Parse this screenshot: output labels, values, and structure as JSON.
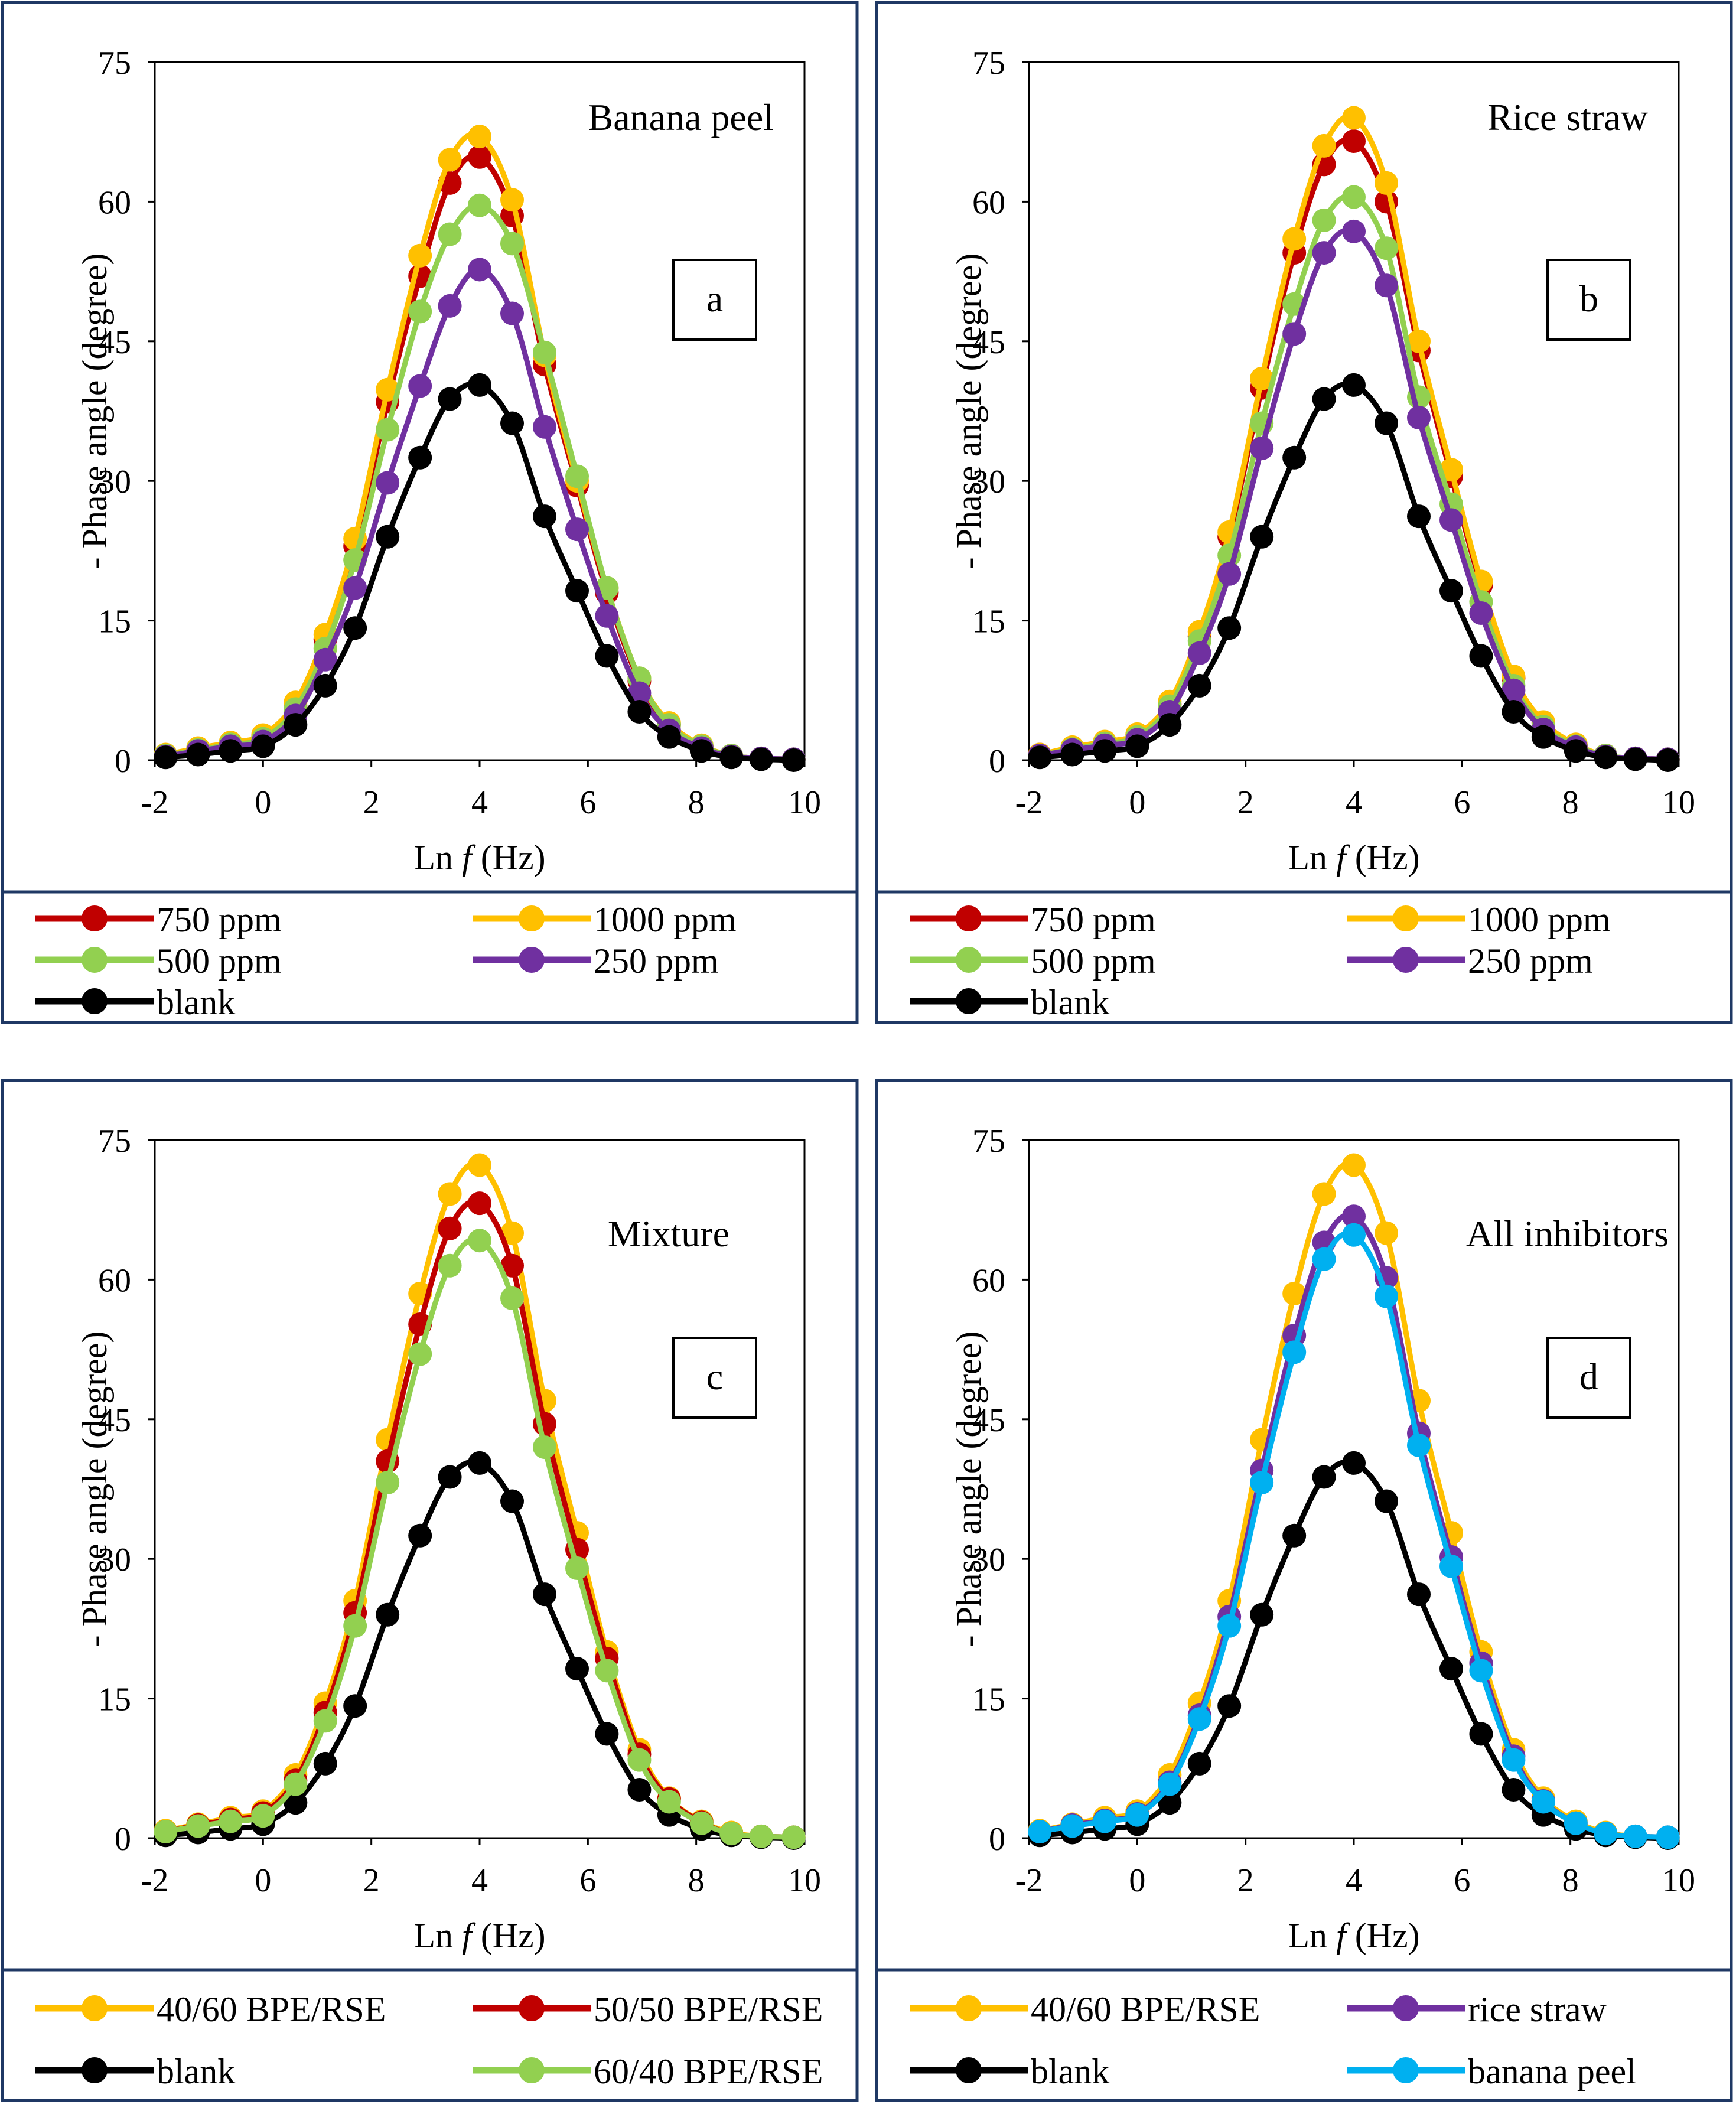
{
  "colors": {
    "750": "#C00000",
    "1000": "#FFC000",
    "500": "#92D050",
    "250": "#7030A0",
    "blank": "#000000",
    "bpe": "#00B0F0",
    "frame": "#1F3864"
  },
  "x_axis": {
    "label_prefix": "Ln ",
    "label_var": "f",
    "label_suffix": " (Hz)",
    "ticks": [
      "-2",
      "0",
      "2",
      "4",
      "6",
      "8",
      "10"
    ],
    "range": [
      -2,
      10
    ]
  },
  "y_axis": {
    "label": "- Phase angle (degree)",
    "ticks": [
      "0",
      "15",
      "30",
      "45",
      "60",
      "75"
    ],
    "range": [
      0,
      75
    ]
  },
  "chart_data": [
    {
      "type": "line",
      "title": "Banana peel",
      "panel_label": "a",
      "x": [
        -1.8,
        -1.2,
        -0.6,
        0.0,
        0.6,
        1.15,
        1.7,
        2.3,
        2.9,
        3.45,
        4.0,
        4.6,
        5.2,
        5.8,
        6.35,
        6.95,
        7.5,
        8.1,
        8.65,
        9.2,
        9.8
      ],
      "series": [
        {
          "name": "750 ppm",
          "color_key": "750",
          "values": [
            0.5,
            1.2,
            1.8,
            2.5,
            5.8,
            13.0,
            23.0,
            38.5,
            52.0,
            62.0,
            64.8,
            58.5,
            42.5,
            29.5,
            18.0,
            8.5,
            3.8,
            1.5,
            0.5,
            0.2,
            0.1
          ]
        },
        {
          "name": "1000 ppm",
          "color_key": "1000",
          "values": [
            0.6,
            1.3,
            1.9,
            2.7,
            6.2,
            13.5,
            23.8,
            39.8,
            54.2,
            64.5,
            67.0,
            60.2,
            43.5,
            30.0,
            18.5,
            8.8,
            4.0,
            1.6,
            0.5,
            0.2,
            0.1
          ]
        },
        {
          "name": "500 ppm",
          "color_key": "500",
          "values": [
            0.5,
            1.1,
            1.7,
            2.3,
            5.5,
            12.0,
            21.5,
            35.5,
            48.2,
            56.5,
            59.6,
            55.5,
            43.8,
            30.5,
            18.5,
            8.8,
            3.8,
            1.5,
            0.5,
            0.2,
            0.1
          ]
        },
        {
          "name": "250 ppm",
          "color_key": "250",
          "values": [
            0.4,
            1.0,
            1.5,
            2.0,
            4.8,
            10.8,
            18.5,
            29.8,
            40.2,
            48.8,
            52.7,
            48.0,
            35.8,
            24.8,
            15.5,
            7.2,
            3.2,
            1.3,
            0.4,
            0.2,
            0.1
          ]
        },
        {
          "name": "blank",
          "color_key": "blank",
          "values": [
            0.3,
            0.6,
            1.0,
            1.5,
            3.8,
            8.0,
            14.2,
            24.0,
            32.5,
            38.8,
            40.3,
            36.2,
            26.2,
            18.2,
            11.2,
            5.2,
            2.5,
            1.0,
            0.3,
            0.1,
            0.0
          ]
        }
      ],
      "legend": [
        {
          "name": "750 ppm",
          "color_key": "750"
        },
        {
          "name": "1000 ppm",
          "color_key": "1000"
        },
        {
          "name": "500 ppm",
          "color_key": "500"
        },
        {
          "name": "250 ppm",
          "color_key": "250"
        },
        {
          "name": "blank",
          "color_key": "blank"
        }
      ],
      "legend_placement": "bottom"
    },
    {
      "type": "line",
      "title": "Rice straw",
      "panel_label": "b",
      "x": [
        -1.8,
        -1.2,
        -0.6,
        0.0,
        0.6,
        1.15,
        1.7,
        2.3,
        2.9,
        3.45,
        4.0,
        4.6,
        5.2,
        5.8,
        6.35,
        6.95,
        7.5,
        8.1,
        8.65,
        9.2,
        9.8
      ],
      "series": [
        {
          "name": "750 ppm",
          "color_key": "750",
          "values": [
            0.6,
            1.3,
            1.9,
            2.7,
            6.0,
            13.3,
            24.0,
            40.0,
            54.5,
            64.0,
            66.5,
            60.0,
            44.0,
            30.5,
            18.8,
            8.8,
            4.0,
            1.6,
            0.5,
            0.2,
            0.1
          ]
        },
        {
          "name": "1000 ppm",
          "color_key": "1000",
          "values": [
            0.6,
            1.4,
            2.0,
            2.8,
            6.3,
            13.8,
            24.5,
            41.0,
            56.0,
            66.0,
            69.0,
            62.0,
            45.0,
            31.2,
            19.2,
            9.0,
            4.1,
            1.7,
            0.5,
            0.2,
            0.1
          ]
        },
        {
          "name": "500 ppm",
          "color_key": "500",
          "values": [
            0.5,
            1.2,
            1.8,
            2.5,
            5.8,
            12.8,
            22.0,
            36.2,
            49.0,
            58.0,
            60.5,
            55.0,
            39.0,
            27.5,
            17.0,
            8.0,
            3.6,
            1.5,
            0.5,
            0.2,
            0.1
          ]
        },
        {
          "name": "250 ppm",
          "color_key": "250",
          "values": [
            0.5,
            1.1,
            1.6,
            2.2,
            5.2,
            11.5,
            20.0,
            33.5,
            45.8,
            54.5,
            56.8,
            51.0,
            36.8,
            25.8,
            15.8,
            7.5,
            3.3,
            1.4,
            0.4,
            0.2,
            0.1
          ]
        },
        {
          "name": "blank",
          "color_key": "blank",
          "values": [
            0.3,
            0.6,
            1.0,
            1.5,
            3.8,
            8.0,
            14.2,
            24.0,
            32.5,
            38.8,
            40.3,
            36.2,
            26.2,
            18.2,
            11.2,
            5.2,
            2.5,
            1.0,
            0.3,
            0.1,
            0.0
          ]
        }
      ],
      "legend": [
        {
          "name": "750 ppm",
          "color_key": "750"
        },
        {
          "name": "1000 ppm",
          "color_key": "1000"
        },
        {
          "name": "500 ppm",
          "color_key": "500"
        },
        {
          "name": "250 ppm",
          "color_key": "250"
        },
        {
          "name": "blank",
          "color_key": "blank"
        }
      ],
      "legend_placement": "bottom"
    },
    {
      "type": "line",
      "title": "Mixture",
      "panel_label": "c",
      "x": [
        -1.8,
        -1.2,
        -0.6,
        0.0,
        0.6,
        1.15,
        1.7,
        2.3,
        2.9,
        3.45,
        4.0,
        4.6,
        5.2,
        5.8,
        6.35,
        6.95,
        7.5,
        8.1,
        8.65,
        9.2,
        9.8
      ],
      "series": [
        {
          "name": "40/60 BPE/RSE",
          "color_key": "1000",
          "values": [
            0.8,
            1.5,
            2.2,
            2.9,
            6.8,
            14.5,
            25.5,
            42.8,
            58.5,
            69.2,
            72.3,
            65.0,
            47.0,
            32.8,
            20.0,
            9.5,
            4.3,
            1.8,
            0.6,
            0.2,
            0.1
          ]
        },
        {
          "name": "50/50 BPE/RSE",
          "color_key": "750",
          "values": [
            0.7,
            1.4,
            2.0,
            2.7,
            6.2,
            13.5,
            24.2,
            40.5,
            55.2,
            65.5,
            68.2,
            61.5,
            44.5,
            31.0,
            19.3,
            9.0,
            4.2,
            1.7,
            0.5,
            0.2,
            0.1
          ]
        },
        {
          "name": "blank",
          "color_key": "blank",
          "values": [
            0.3,
            0.6,
            1.0,
            1.5,
            3.8,
            8.0,
            14.2,
            24.0,
            32.5,
            38.8,
            40.3,
            36.2,
            26.2,
            18.2,
            11.2,
            5.2,
            2.5,
            1.0,
            0.3,
            0.1,
            0.0
          ]
        },
        {
          "name": "60/40 BPE/RSE",
          "color_key": "500",
          "values": [
            0.7,
            1.3,
            1.8,
            2.4,
            5.8,
            12.6,
            22.8,
            38.2,
            52.0,
            61.5,
            64.2,
            58.0,
            42.0,
            29.0,
            18.0,
            8.4,
            3.9,
            1.6,
            0.5,
            0.2,
            0.1
          ]
        }
      ],
      "legend": [
        {
          "name": "40/60 BPE/RSE",
          "color_key": "1000"
        },
        {
          "name": "50/50 BPE/RSE",
          "color_key": "750"
        },
        {
          "name": "blank",
          "color_key": "blank"
        },
        {
          "name": "60/40 BPE/RSE",
          "color_key": "500"
        }
      ],
      "legend_placement": "bottom"
    },
    {
      "type": "line",
      "title": "All inhibitors",
      "panel_label": "d",
      "x": [
        -1.8,
        -1.2,
        -0.6,
        0.0,
        0.6,
        1.15,
        1.7,
        2.3,
        2.9,
        3.45,
        4.0,
        4.6,
        5.2,
        5.8,
        6.35,
        6.95,
        7.5,
        8.1,
        8.65,
        9.2,
        9.8
      ],
      "series": [
        {
          "name": "40/60 BPE/RSE",
          "color_key": "1000",
          "values": [
            0.8,
            1.5,
            2.2,
            2.9,
            6.8,
            14.5,
            25.5,
            42.8,
            58.5,
            69.2,
            72.3,
            65.0,
            47.0,
            32.8,
            20.0,
            9.5,
            4.3,
            1.8,
            0.6,
            0.2,
            0.1
          ]
        },
        {
          "name": "rice straw",
          "color_key": "250",
          "values": [
            0.7,
            1.4,
            1.9,
            2.6,
            6.0,
            13.2,
            23.8,
            39.5,
            54.0,
            64.0,
            66.8,
            60.2,
            43.5,
            30.2,
            18.8,
            8.8,
            4.0,
            1.6,
            0.5,
            0.2,
            0.1
          ]
        },
        {
          "name": "blank",
          "color_key": "blank",
          "values": [
            0.3,
            0.6,
            1.0,
            1.5,
            3.8,
            8.0,
            14.2,
            24.0,
            32.5,
            38.8,
            40.3,
            36.2,
            26.2,
            18.2,
            11.2,
            5.2,
            2.5,
            1.0,
            0.3,
            0.1,
            0.0
          ]
        },
        {
          "name": "banana peel",
          "color_key": "bpe",
          "values": [
            0.7,
            1.3,
            1.8,
            2.5,
            5.8,
            12.8,
            22.8,
            38.2,
            52.2,
            62.2,
            64.8,
            58.2,
            42.2,
            29.2,
            18.0,
            8.4,
            3.9,
            1.6,
            0.5,
            0.2,
            0.1
          ]
        }
      ],
      "legend": [
        {
          "name": "40/60 BPE/RSE",
          "color_key": "1000"
        },
        {
          "name": "rice straw",
          "color_key": "250"
        },
        {
          "name": "blank",
          "color_key": "blank"
        },
        {
          "name": "banana peel",
          "color_key": "bpe"
        }
      ],
      "legend_placement": "bottom"
    }
  ]
}
